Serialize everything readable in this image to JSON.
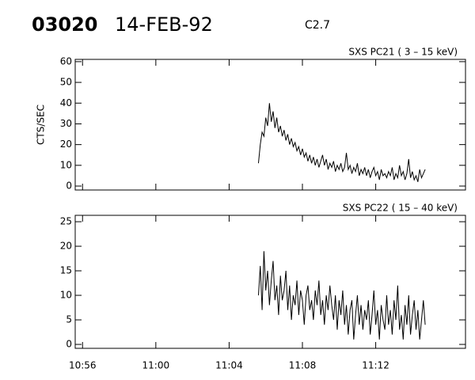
{
  "header": {
    "id": "03020",
    "date": "14-FEB-92",
    "class": "C2.7"
  },
  "chart_data": [
    {
      "type": "line",
      "title": "SXS PC21  (  3 – 15 keV)",
      "ylabel": "CTS/SEC",
      "x": [
        665.6,
        665.7,
        665.8,
        665.9,
        666.0,
        666.1,
        666.2,
        666.3,
        666.4,
        666.5,
        666.6,
        666.7,
        666.8,
        666.9,
        667.0,
        667.1,
        667.2,
        667.3,
        667.4,
        667.5,
        667.6,
        667.7,
        667.8,
        667.9,
        668.0,
        668.1,
        668.2,
        668.3,
        668.4,
        668.5,
        668.6,
        668.7,
        668.8,
        668.9,
        669.0,
        669.1,
        669.2,
        669.3,
        669.4,
        669.5,
        669.6,
        669.7,
        669.8,
        669.9,
        670.0,
        670.1,
        670.2,
        670.3,
        670.4,
        670.5,
        670.6,
        670.7,
        670.8,
        670.9,
        671.0,
        671.1,
        671.2,
        671.3,
        671.4,
        671.5,
        671.6,
        671.7,
        671.8,
        671.9,
        672.0,
        672.1,
        672.2,
        672.3,
        672.4,
        672.5,
        672.6,
        672.7,
        672.8,
        672.9,
        673.0,
        673.1,
        673.2,
        673.3,
        673.4,
        673.5,
        673.6,
        673.7,
        673.8,
        673.9,
        674.0,
        674.1,
        674.2,
        674.3,
        674.4,
        674.5,
        674.6,
        674.7
      ],
      "series": [
        {
          "color": "#000000",
          "values": [
            11,
            20,
            26,
            24,
            33,
            29,
            40,
            31,
            36,
            28,
            33,
            26,
            29,
            24,
            27,
            22,
            25,
            20,
            23,
            19,
            21,
            17,
            19,
            15,
            18,
            14,
            16,
            12,
            15,
            11,
            14,
            10,
            13,
            9,
            12,
            15,
            10,
            13,
            8,
            11,
            9,
            12,
            7,
            10,
            8,
            11,
            7,
            9,
            16,
            8,
            10,
            6,
            9,
            7,
            11,
            5,
            8,
            6,
            9,
            5,
            8,
            4,
            7,
            9,
            5,
            7,
            3,
            8,
            5,
            6,
            4,
            7,
            5,
            9,
            3,
            6,
            4,
            10,
            5,
            7,
            3,
            6,
            13,
            4,
            7,
            3,
            5,
            2,
            8,
            4,
            6,
            8
          ]
        }
      ],
      "xlim": [
        655.6,
        676.9
      ],
      "xticks": [
        656,
        660,
        664,
        668,
        672
      ],
      "ylim": [
        -1.9,
        61.1
      ],
      "yticks": [
        0,
        10,
        20,
        30,
        40,
        50,
        60
      ]
    },
    {
      "type": "line",
      "title": "SXS PC22  ( 15 – 40 keV)",
      "x": [
        665.6,
        665.7,
        665.8,
        665.9,
        666.0,
        666.1,
        666.2,
        666.3,
        666.4,
        666.5,
        666.6,
        666.7,
        666.8,
        666.9,
        667.0,
        667.1,
        667.2,
        667.3,
        667.4,
        667.5,
        667.6,
        667.7,
        667.8,
        667.9,
        668.0,
        668.1,
        668.2,
        668.3,
        668.4,
        668.5,
        668.6,
        668.7,
        668.8,
        668.9,
        669.0,
        669.1,
        669.2,
        669.3,
        669.4,
        669.5,
        669.6,
        669.7,
        669.8,
        669.9,
        670.0,
        670.1,
        670.2,
        670.3,
        670.4,
        670.5,
        670.6,
        670.7,
        670.8,
        670.9,
        671.0,
        671.1,
        671.2,
        671.3,
        671.4,
        671.5,
        671.6,
        671.7,
        671.8,
        671.9,
        672.0,
        672.1,
        672.2,
        672.3,
        672.4,
        672.5,
        672.6,
        672.7,
        672.8,
        672.9,
        673.0,
        673.1,
        673.2,
        673.3,
        673.4,
        673.5,
        673.6,
        673.7,
        673.8,
        673.9,
        674.0,
        674.1,
        674.2,
        674.3,
        674.4,
        674.5,
        674.6,
        674.7
      ],
      "series": [
        {
          "color": "#000000",
          "values": [
            10,
            16,
            7,
            19,
            11,
            15,
            8,
            13,
            17,
            9,
            12,
            6,
            14,
            9,
            11,
            15,
            7,
            12,
            5,
            10,
            8,
            13,
            6,
            11,
            9,
            4,
            10,
            12,
            7,
            9,
            5,
            11,
            8,
            13,
            6,
            9,
            4,
            10,
            7,
            12,
            8,
            5,
            10,
            3,
            9,
            6,
            11,
            4,
            8,
            2,
            7,
            9,
            1,
            6,
            10,
            4,
            8,
            3,
            7,
            5,
            9,
            2,
            6,
            11,
            4,
            7,
            1,
            8,
            5,
            3,
            10,
            4,
            7,
            2,
            9,
            5,
            12,
            3,
            6,
            1,
            8,
            4,
            10,
            2,
            6,
            9,
            3,
            7,
            1,
            5,
            9,
            4
          ]
        }
      ],
      "xlim": [
        655.6,
        676.9
      ],
      "xticks": [
        {
          "value": 656,
          "label": "10:56"
        },
        {
          "value": 660,
          "label": "11:00"
        },
        {
          "value": 664,
          "label": "11:04"
        },
        {
          "value": 668,
          "label": "11:08"
        },
        {
          "value": 672,
          "label": "11:12"
        }
      ],
      "ylim": [
        -0.8,
        26.3
      ],
      "yticks": [
        0,
        5,
        10,
        15,
        20,
        25
      ]
    }
  ]
}
